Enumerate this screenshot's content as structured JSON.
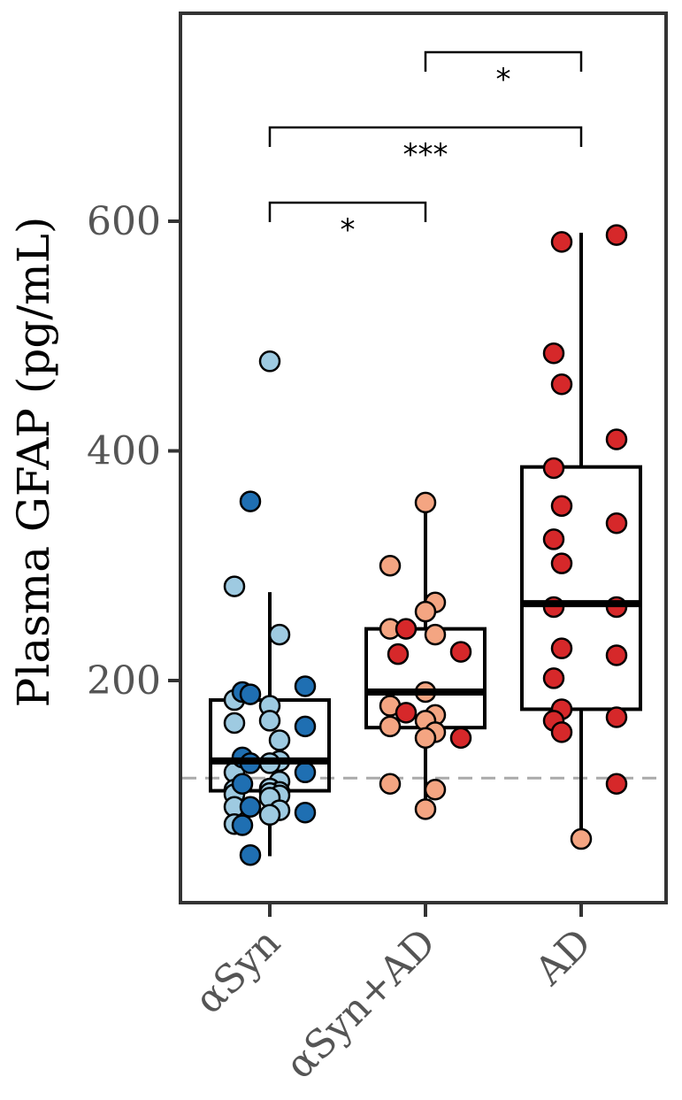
{
  "chart_data": {
    "type": "box",
    "ylabel": "Plasma GFAP (pg/mL)",
    "ylim": [
      0,
      780
    ],
    "yticks": [
      200,
      400,
      600
    ],
    "reference_line": 115,
    "categories": [
      "αSyn",
      "αSyn+AD",
      "AD"
    ],
    "boxes": [
      {
        "category": "αSyn",
        "min": 47,
        "q1": 104,
        "median": 130,
        "q3": 183,
        "max": 277
      },
      {
        "category": "αSyn+AD",
        "min": 88,
        "q1": 159,
        "median": 190,
        "q3": 245,
        "max": 355
      },
      {
        "category": "AD",
        "min": 62,
        "q1": 175,
        "median": 267,
        "q3": 386,
        "max": 590
      }
    ],
    "series": [
      {
        "category": "αSyn",
        "shade": "light",
        "values": [
          478,
          282,
          240,
          178,
          163,
          130,
          128,
          120,
          112,
          106,
          105,
          103,
          102,
          101,
          100,
          98,
          90,
          87,
          83,
          75,
          148,
          165,
          183
        ]
      },
      {
        "category": "αSyn",
        "shade": "dark",
        "values": [
          356,
          195,
          190,
          188,
          160,
          133,
          128,
          120,
          110,
          90,
          85,
          74,
          48
        ]
      },
      {
        "category": "αSyn+AD",
        "shade": "light",
        "values": [
          355,
          300,
          268,
          260,
          245,
          240,
          190,
          178,
          170,
          165,
          160,
          155,
          150,
          110,
          105,
          88
        ]
      },
      {
        "category": "αSyn+AD",
        "shade": "dark",
        "values": [
          245,
          225,
          223,
          172,
          150
        ]
      },
      {
        "category": "AD",
        "shade": "dark",
        "values": [
          582,
          588,
          485,
          458,
          410,
          385,
          352,
          337,
          323,
          302,
          264,
          264,
          228,
          222,
          202,
          175,
          168,
          165,
          155,
          110
        ]
      },
      {
        "category": "AD",
        "shade": "light",
        "values": [
          62
        ]
      }
    ],
    "colors": {
      "αSyn_light": "#9ecae1",
      "αSyn_dark": "#1f6fb2",
      "αSyn+AD_light": "#f4a582",
      "αSyn+AD_dark": "#d6282a",
      "AD_light": "#f4a582",
      "AD_dark": "#d6282a",
      "reference_line": "#aaaaaa"
    },
    "significance": [
      {
        "from": "αSyn+AD",
        "to": "AD",
        "label": "*",
        "level": 3
      },
      {
        "from": "αSyn",
        "to": "AD",
        "label": "***",
        "level": 2
      },
      {
        "from": "αSyn",
        "to": "αSyn+AD",
        "label": "*",
        "level": 1
      }
    ]
  }
}
